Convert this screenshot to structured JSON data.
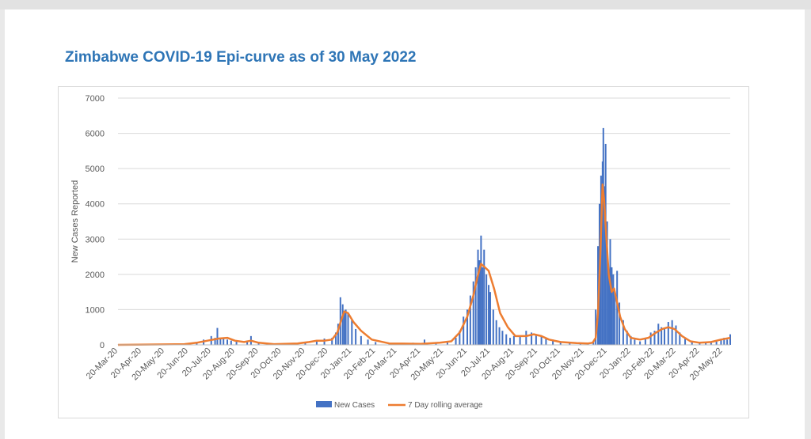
{
  "title": "Zimbabwe COVID-19 Epi-curve as of 30 May 2022",
  "colors": {
    "bars": "#4472c4",
    "line": "#ed7d31",
    "title": "#2e75b6",
    "grid": "#d9d9d9",
    "text": "#595959"
  },
  "chart_data": {
    "type": "bar",
    "title": "Zimbabwe COVID-19 Epi-curve as of 30 May 2022",
    "xlabel": "",
    "ylabel": "New Cases Reported",
    "ylim": [
      0,
      7000
    ],
    "yticks": [
      "0",
      "1000",
      "2000",
      "3000",
      "4000",
      "5000",
      "6000",
      "7000"
    ],
    "xlim": [
      "20-Mar-20",
      "30-May-22"
    ],
    "xticks": [
      "20-Mar-20",
      "20-Apr-20",
      "20-May-20",
      "20-Jun-20",
      "20-Jul-20",
      "20-Aug-20",
      "20-Sep-20",
      "20-Oct-20",
      "20-Nov-20",
      "20-Dec-20",
      "20-Jan-21",
      "20-Feb-21",
      "20-Mar-21",
      "20-Apr-21",
      "20-May-21",
      "20-Jun-21",
      "20-Jul-21",
      "20-Aug-21",
      "20-Sep-21",
      "20-Oct-21",
      "20-Nov-21",
      "20-Dec-21",
      "20-Jan-22",
      "20-Feb-22",
      "20-Mar-22",
      "20-Apr-22",
      "20-May-22"
    ],
    "grid": true,
    "legend_position": "bottom",
    "series": [
      {
        "name": "New Cases",
        "type": "bar",
        "x": [
          "2020-03-20",
          "2020-04-20",
          "2020-05-20",
          "2020-06-15",
          "2020-07-01",
          "2020-07-10",
          "2020-07-20",
          "2020-07-25",
          "2020-07-28",
          "2020-08-01",
          "2020-08-05",
          "2020-08-10",
          "2020-08-15",
          "2020-08-22",
          "2020-09-05",
          "2020-09-10",
          "2020-09-20",
          "2020-10-20",
          "2020-11-20",
          "2020-12-05",
          "2020-12-15",
          "2020-12-25",
          "2020-12-30",
          "2021-01-02",
          "2021-01-05",
          "2021-01-08",
          "2021-01-10",
          "2021-01-12",
          "2021-01-15",
          "2021-01-20",
          "2021-01-25",
          "2021-02-01",
          "2021-02-10",
          "2021-02-20",
          "2021-03-10",
          "2021-04-10",
          "2021-04-25",
          "2021-05-10",
          "2021-05-25",
          "2021-06-05",
          "2021-06-10",
          "2021-06-15",
          "2021-06-20",
          "2021-06-24",
          "2021-06-28",
          "2021-07-01",
          "2021-07-04",
          "2021-07-06",
          "2021-07-08",
          "2021-07-10",
          "2021-07-12",
          "2021-07-15",
          "2021-07-18",
          "2021-07-20",
          "2021-07-24",
          "2021-07-28",
          "2021-08-01",
          "2021-08-05",
          "2021-08-10",
          "2021-08-15",
          "2021-08-20",
          "2021-08-28",
          "2021-09-05",
          "2021-09-12",
          "2021-09-18",
          "2021-09-25",
          "2021-10-01",
          "2021-10-10",
          "2021-10-20",
          "2021-11-01",
          "2021-11-15",
          "2021-11-25",
          "2021-12-02",
          "2021-12-05",
          "2021-12-08",
          "2021-12-10",
          "2021-12-12",
          "2021-12-14",
          "2021-12-15",
          "2021-12-17",
          "2021-12-18",
          "2021-12-20",
          "2021-12-22",
          "2021-12-24",
          "2021-12-26",
          "2021-12-28",
          "2021-12-30",
          "2022-01-02",
          "2022-01-05",
          "2022-01-10",
          "2022-01-15",
          "2022-01-20",
          "2022-01-25",
          "2022-02-01",
          "2022-02-08",
          "2022-02-15",
          "2022-02-20",
          "2022-02-25",
          "2022-03-01",
          "2022-03-05",
          "2022-03-10",
          "2022-03-15",
          "2022-03-20",
          "2022-03-25",
          "2022-04-01",
          "2022-04-10",
          "2022-04-20",
          "2022-04-28",
          "2022-05-05",
          "2022-05-12",
          "2022-05-18",
          "2022-05-22",
          "2022-05-26",
          "2022-05-30"
        ],
        "values": [
          2,
          5,
          15,
          40,
          80,
          150,
          250,
          200,
          480,
          180,
          200,
          150,
          120,
          100,
          80,
          250,
          60,
          40,
          60,
          120,
          180,
          200,
          350,
          600,
          1350,
          1150,
          950,
          1000,
          900,
          700,
          450,
          250,
          150,
          80,
          50,
          60,
          150,
          60,
          80,
          200,
          400,
          800,
          1000,
          1400,
          1800,
          2200,
          2700,
          2400,
          3100,
          2200,
          2700,
          2000,
          1700,
          1500,
          1000,
          700,
          500,
          400,
          300,
          200,
          250,
          250,
          400,
          350,
          300,
          250,
          200,
          150,
          100,
          50,
          40,
          50,
          100,
          1000,
          2800,
          4000,
          4800,
          5200,
          6150,
          4500,
          5700,
          3500,
          2100,
          3000,
          2200,
          2000,
          1500,
          2100,
          1200,
          700,
          400,
          250,
          150,
          100,
          200,
          350,
          400,
          600,
          500,
          450,
          650,
          700,
          550,
          350,
          200,
          100,
          60,
          50,
          80,
          100,
          150,
          200,
          150,
          300
        ]
      },
      {
        "name": "7 Day rolling average",
        "type": "line",
        "x": [
          "2020-03-20",
          "2020-06-15",
          "2020-07-01",
          "2020-07-15",
          "2020-07-30",
          "2020-08-10",
          "2020-08-20",
          "2020-09-01",
          "2020-09-10",
          "2020-09-20",
          "2020-10-10",
          "2020-11-10",
          "2020-11-25",
          "2020-12-05",
          "2020-12-15",
          "2020-12-25",
          "2021-01-01",
          "2021-01-06",
          "2021-01-10",
          "2021-01-15",
          "2021-01-22",
          "2021-02-01",
          "2021-02-15",
          "2021-03-10",
          "2021-04-20",
          "2021-05-15",
          "2021-05-30",
          "2021-06-10",
          "2021-06-20",
          "2021-06-28",
          "2021-07-03",
          "2021-07-08",
          "2021-07-13",
          "2021-07-18",
          "2021-07-25",
          "2021-08-02",
          "2021-08-12",
          "2021-08-22",
          "2021-09-05",
          "2021-09-15",
          "2021-09-25",
          "2021-10-05",
          "2021-10-20",
          "2021-11-10",
          "2021-11-25",
          "2021-12-01",
          "2021-12-05",
          "2021-12-08",
          "2021-12-11",
          "2021-12-14",
          "2021-12-16",
          "2021-12-19",
          "2021-12-22",
          "2021-12-26",
          "2021-12-29",
          "2022-01-02",
          "2022-01-06",
          "2022-01-12",
          "2022-01-20",
          "2022-02-01",
          "2022-02-12",
          "2022-02-22",
          "2022-03-02",
          "2022-03-10",
          "2022-03-18",
          "2022-03-28",
          "2022-04-08",
          "2022-04-20",
          "2022-05-05",
          "2022-05-18",
          "2022-05-30"
        ],
        "values": [
          0,
          20,
          60,
          120,
          180,
          200,
          120,
          80,
          120,
          60,
          20,
          40,
          80,
          120,
          120,
          150,
          350,
          700,
          950,
          900,
          650,
          400,
          150,
          40,
          30,
          60,
          100,
          350,
          800,
          1400,
          1900,
          2300,
          2200,
          2100,
          1600,
          900,
          500,
          250,
          250,
          300,
          250,
          150,
          80,
          50,
          40,
          60,
          200,
          900,
          2500,
          4550,
          4100,
          3000,
          2000,
          1500,
          1600,
          1200,
          800,
          450,
          200,
          150,
          200,
          350,
          450,
          500,
          450,
          250,
          100,
          60,
          80,
          150,
          200
        ]
      }
    ]
  }
}
